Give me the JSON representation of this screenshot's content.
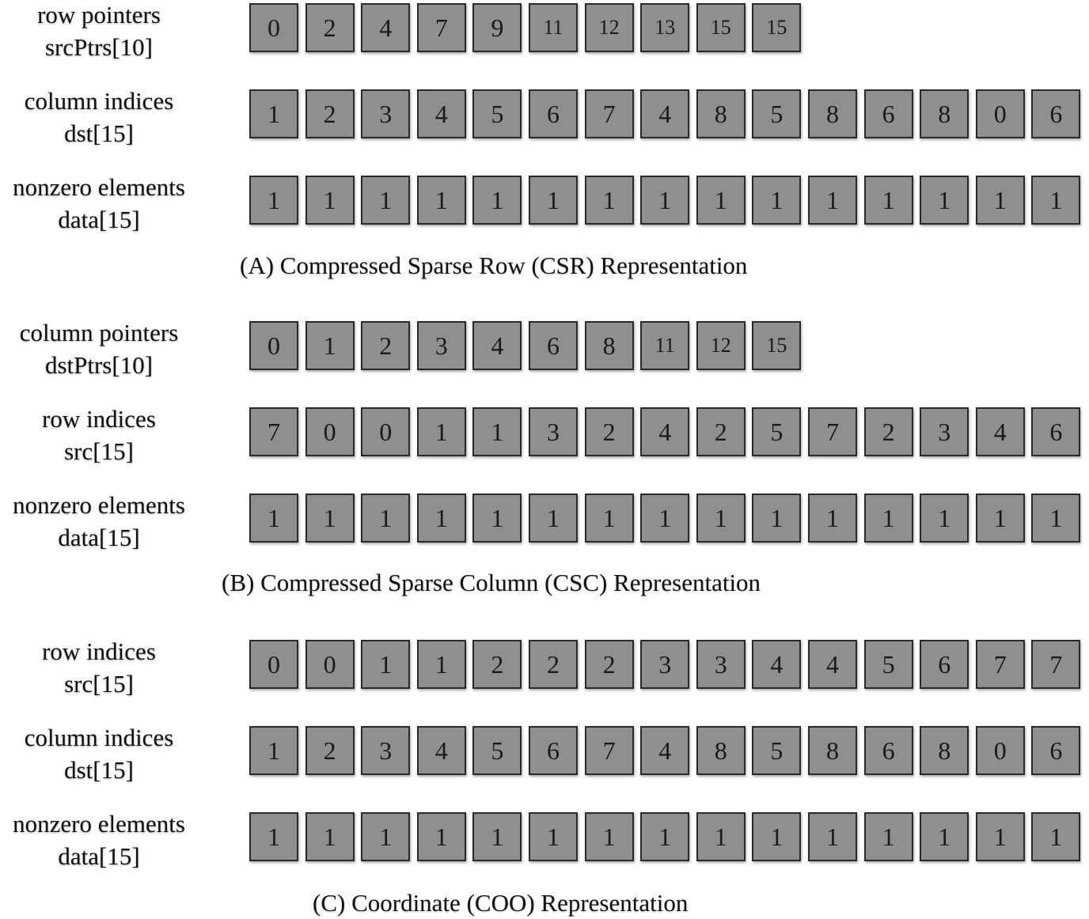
{
  "sections": [
    {
      "caption": "(A) Compressed Sparse Row (CSR) Representation",
      "arrays": [
        {
          "label_line1": "row pointers",
          "label_line2": "srcPtrs[10]",
          "values": [
            "0",
            "2",
            "4",
            "7",
            "9",
            "11",
            "12",
            "13",
            "15",
            "15"
          ]
        },
        {
          "label_line1": "column indices",
          "label_line2": "dst[15]",
          "values": [
            "1",
            "2",
            "3",
            "4",
            "5",
            "6",
            "7",
            "4",
            "8",
            "5",
            "8",
            "6",
            "8",
            "0",
            "6"
          ]
        },
        {
          "label_line1": "nonzero elements",
          "label_line2": "data[15]",
          "values": [
            "1",
            "1",
            "1",
            "1",
            "1",
            "1",
            "1",
            "1",
            "1",
            "1",
            "1",
            "1",
            "1",
            "1",
            "1"
          ]
        }
      ]
    },
    {
      "caption": "(B) Compressed Sparse Column (CSC) Representation",
      "arrays": [
        {
          "label_line1": "column pointers",
          "label_line2": "dstPtrs[10]",
          "values": [
            "0",
            "1",
            "2",
            "3",
            "4",
            "6",
            "8",
            "11",
            "12",
            "15"
          ]
        },
        {
          "label_line1": "row indices",
          "label_line2": "src[15]",
          "values": [
            "7",
            "0",
            "0",
            "1",
            "1",
            "3",
            "2",
            "4",
            "2",
            "5",
            "7",
            "2",
            "3",
            "4",
            "6"
          ]
        },
        {
          "label_line1": "nonzero elements",
          "label_line2": "data[15]",
          "values": [
            "1",
            "1",
            "1",
            "1",
            "1",
            "1",
            "1",
            "1",
            "1",
            "1",
            "1",
            "1",
            "1",
            "1",
            "1"
          ]
        }
      ]
    },
    {
      "caption": "(C) Coordinate (COO) Representation",
      "arrays": [
        {
          "label_line1": "row indices",
          "label_line2": "src[15]",
          "values": [
            "0",
            "0",
            "1",
            "1",
            "2",
            "2",
            "2",
            "3",
            "3",
            "4",
            "4",
            "5",
            "6",
            "7",
            "7"
          ]
        },
        {
          "label_line1": "column indices",
          "label_line2": "dst[15]",
          "values": [
            "1",
            "2",
            "3",
            "4",
            "5",
            "6",
            "7",
            "4",
            "8",
            "5",
            "8",
            "6",
            "8",
            "0",
            "6"
          ]
        },
        {
          "label_line1": "nonzero elements",
          "label_line2": "data[15]",
          "values": [
            "1",
            "1",
            "1",
            "1",
            "1",
            "1",
            "1",
            "1",
            "1",
            "1",
            "1",
            "1",
            "1",
            "1",
            "1"
          ]
        }
      ]
    }
  ]
}
